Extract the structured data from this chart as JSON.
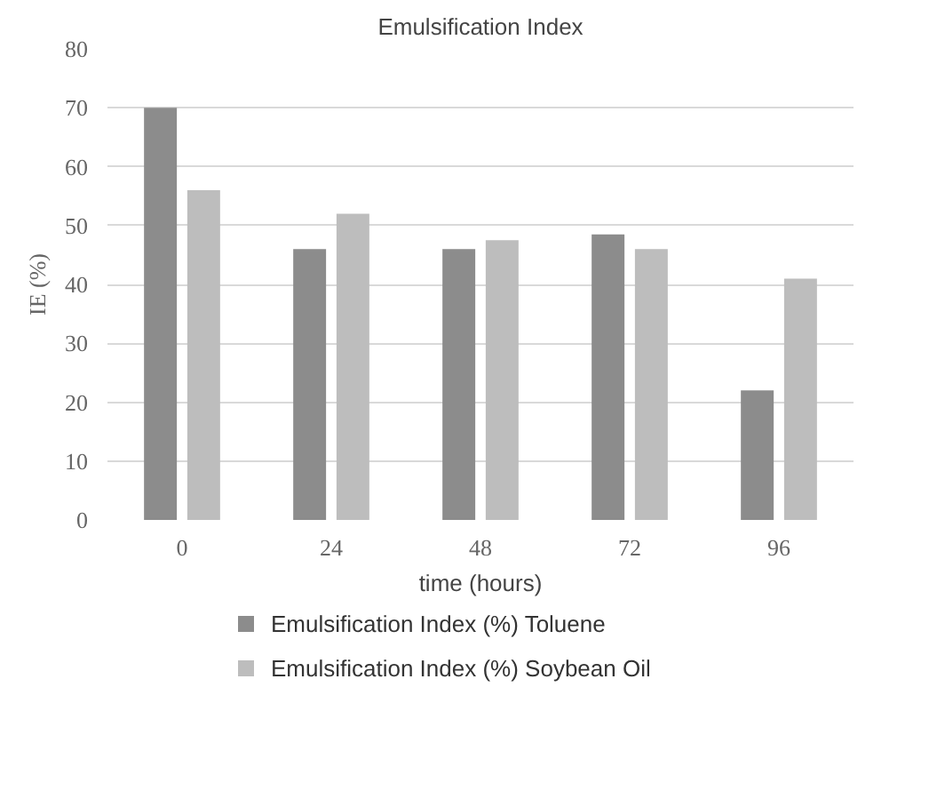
{
  "chart_data": {
    "type": "bar",
    "title": "Emulsification Index",
    "xlabel": "time (hours)",
    "ylabel": "IE (%)",
    "categories": [
      "0",
      "24",
      "48",
      "72",
      "96"
    ],
    "series": [
      {
        "name": "Emulsification Index (%) Toluene",
        "color": "#8c8c8c",
        "values": [
          70,
          46,
          46,
          48.5,
          22
        ]
      },
      {
        "name": "Emulsification Index (%) Soybean Oil",
        "color": "#bdbdbd",
        "values": [
          56,
          52,
          47.5,
          46,
          41
        ]
      }
    ],
    "ylim": [
      0,
      80
    ],
    "yticks": [
      0,
      10,
      20,
      30,
      40,
      50,
      60,
      70,
      80
    ],
    "grid": "y",
    "legend": "bottom"
  }
}
